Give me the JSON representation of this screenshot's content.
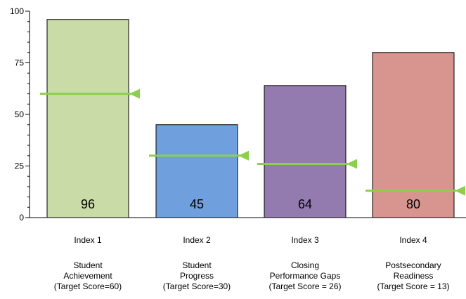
{
  "chart_data": {
    "type": "bar",
    "categories": [
      "Index 1",
      "Index 2",
      "Index 3",
      "Index 4"
    ],
    "descriptions": [
      [
        "Student",
        "Achievement",
        "(Target Score=60)"
      ],
      [
        "Student",
        "Progress",
        "(Target Score=30)"
      ],
      [
        "Closing",
        "Performance Gaps",
        "(Target Score = 26)"
      ],
      [
        "Postsecondary",
        "Readiness",
        "(Target Score = 13)"
      ]
    ],
    "values": [
      96,
      45,
      64,
      80
    ],
    "value_labels": [
      "96",
      "45",
      "64",
      "80"
    ],
    "targets": [
      60,
      30,
      26,
      13
    ],
    "colors": [
      "#c9dba7",
      "#6f9fdc",
      "#937baf",
      "#d8948f"
    ],
    "target_color": "#8ccf4a",
    "ylim": [
      0,
      100
    ],
    "yticks": [
      0,
      25,
      50,
      75,
      100
    ],
    "ytick_labels": [
      "0",
      "25",
      "50",
      "75",
      "100"
    ],
    "grid": false,
    "title": "",
    "xlabel": "",
    "ylabel": ""
  }
}
